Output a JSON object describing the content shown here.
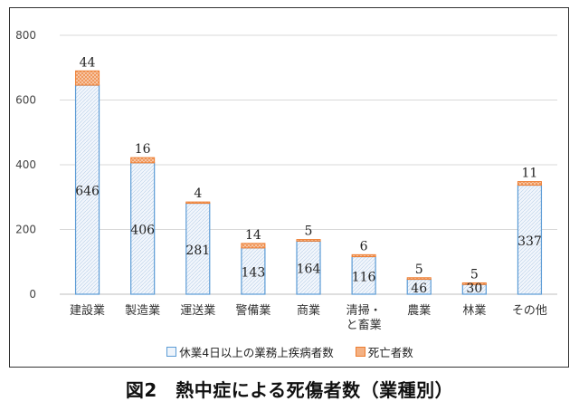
{
  "caption": "図2　熱中症による死傷者数（業種別）",
  "chart_data": {
    "type": "bar",
    "stacked": true,
    "categories": [
      "建設業",
      "製造業",
      "運送業",
      "警備業",
      "商業",
      "清掃・\nと畜業",
      "農業",
      "林業",
      "その他"
    ],
    "series": [
      {
        "name": "休業4日以上の業務上疾病者数",
        "values": [
          646,
          406,
          281,
          143,
          164,
          116,
          46,
          30,
          337
        ],
        "color": "#5b9bd5"
      },
      {
        "name": "死亡者数",
        "values": [
          44,
          16,
          4,
          14,
          5,
          6,
          5,
          5,
          11
        ],
        "color": "#ed7d31"
      }
    ],
    "ylim": [
      0,
      800
    ],
    "yticks": [
      0,
      200,
      400,
      600,
      800
    ],
    "grid": true,
    "legend": "bottom"
  }
}
